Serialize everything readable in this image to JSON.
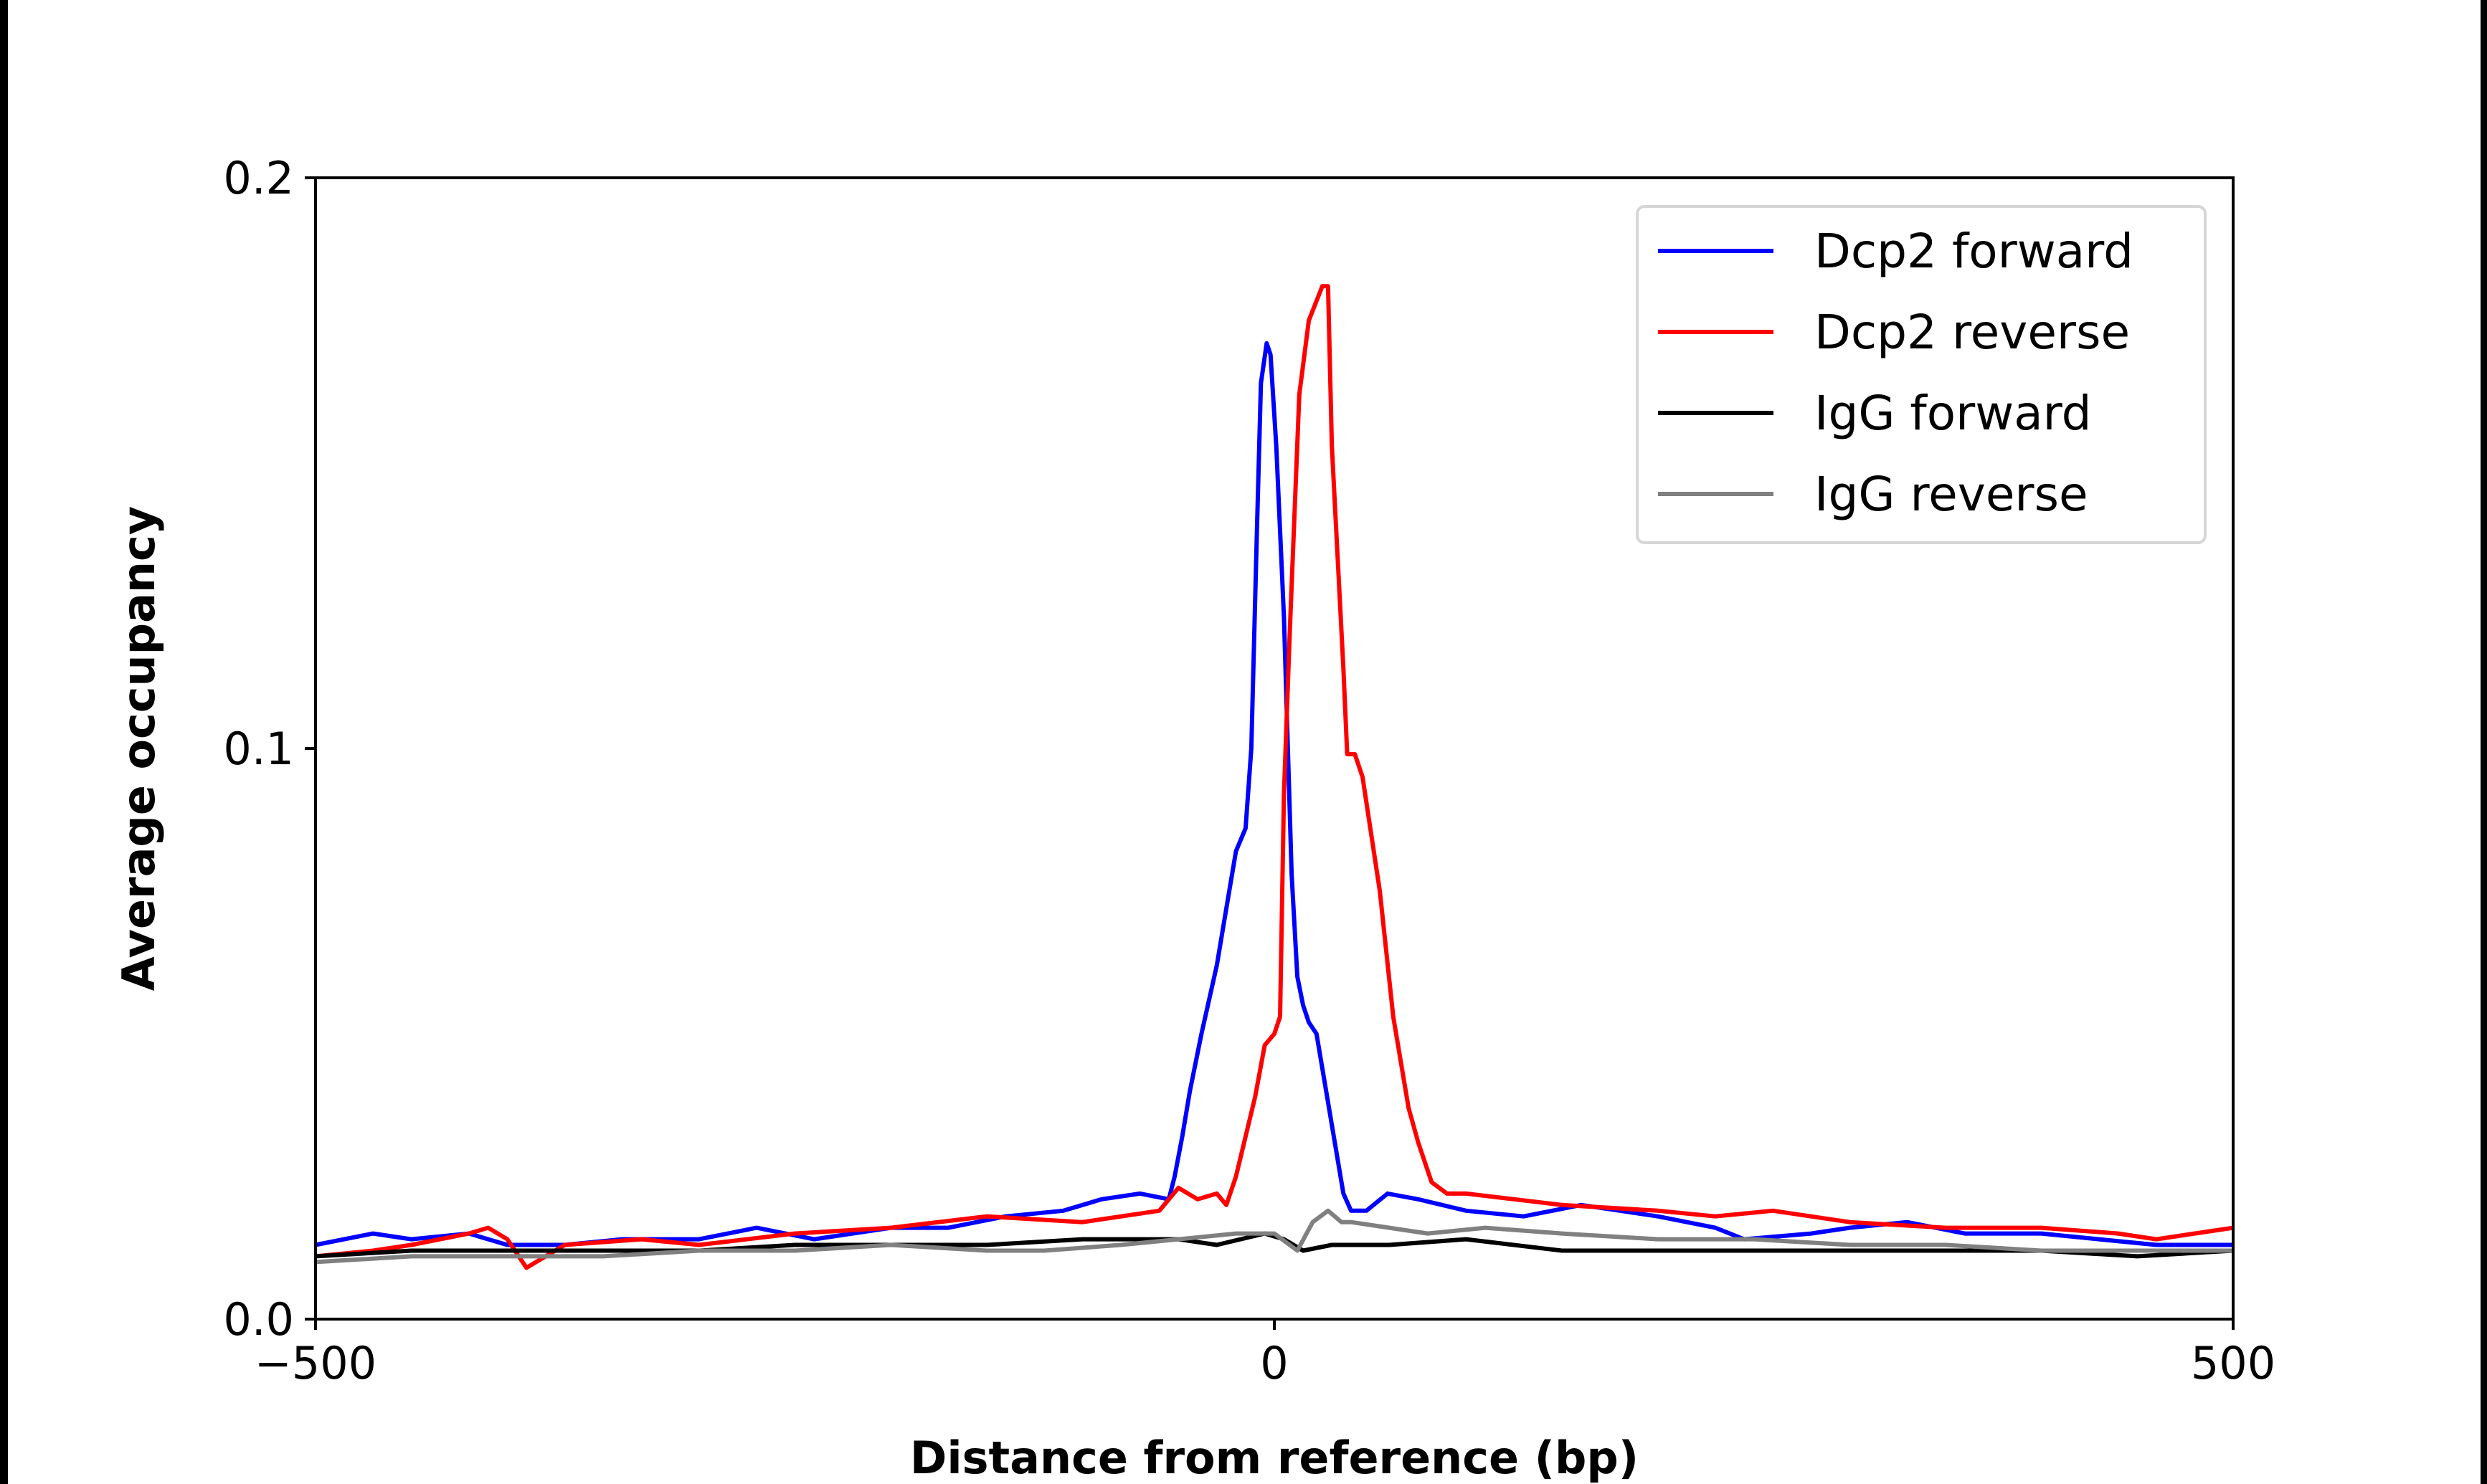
{
  "chart_data": {
    "type": "line",
    "title": "",
    "xlabel": "Distance from reference (bp)",
    "ylabel": "Average occupancy",
    "xlim": [
      -500,
      500
    ],
    "ylim": [
      0,
      0.2
    ],
    "xticks": [
      -500,
      0,
      500
    ],
    "xtick_labels": [
      "−500",
      "0",
      "500"
    ],
    "yticks": [
      0,
      0.1,
      0.2
    ],
    "ytick_labels": [
      "0.0",
      "0.1",
      "0.2"
    ],
    "grid": false,
    "legend_position": "top-right",
    "series": [
      {
        "name": "Dcp2 forward",
        "color": "#0000ff",
        "x": [
          -500,
          -470,
          -450,
          -420,
          -400,
          -370,
          -340,
          -300,
          -270,
          -240,
          -200,
          -170,
          -140,
          -110,
          -90,
          -70,
          -55,
          -52,
          -48,
          -44,
          -38,
          -30,
          -25,
          -20,
          -15,
          -12,
          -9,
          -7,
          -4,
          -2,
          1,
          5,
          9,
          12,
          15,
          18,
          22,
          27,
          32,
          36,
          40,
          48,
          59,
          75,
          100,
          130,
          160,
          200,
          230,
          245,
          280,
          300,
          330,
          360,
          400,
          430,
          460,
          500
        ],
        "y": [
          0.013,
          0.015,
          0.014,
          0.015,
          0.013,
          0.013,
          0.014,
          0.014,
          0.016,
          0.014,
          0.016,
          0.016,
          0.018,
          0.019,
          0.021,
          0.022,
          0.021,
          0.025,
          0.032,
          0.04,
          0.05,
          0.062,
          0.072,
          0.082,
          0.086,
          0.1,
          0.139,
          0.164,
          0.171,
          0.169,
          0.153,
          0.123,
          0.078,
          0.06,
          0.055,
          0.052,
          0.05,
          0.04,
          0.03,
          0.022,
          0.019,
          0.019,
          0.022,
          0.021,
          0.019,
          0.018,
          0.02,
          0.018,
          0.016,
          0.014,
          0.015,
          0.016,
          0.017,
          0.015,
          0.015,
          0.014,
          0.013,
          0.013
        ]
      },
      {
        "name": "Dcp2 reverse",
        "color": "#ff0000",
        "x": [
          -500,
          -470,
          -450,
          -420,
          -410,
          -400,
          -390,
          -370,
          -330,
          -300,
          -250,
          -200,
          -150,
          -100,
          -60,
          -50,
          -40,
          -30,
          -25,
          -20,
          -15,
          -10,
          -5,
          0,
          3,
          5,
          8,
          13,
          18,
          25,
          28,
          30,
          36,
          38,
          42,
          46,
          55,
          62,
          70,
          75,
          82,
          90,
          100,
          150,
          200,
          230,
          260,
          300,
          350,
          400,
          440,
          460,
          500
        ],
        "y": [
          0.011,
          0.012,
          0.013,
          0.015,
          0.016,
          0.014,
          0.009,
          0.013,
          0.014,
          0.013,
          0.015,
          0.016,
          0.018,
          0.017,
          0.019,
          0.023,
          0.021,
          0.022,
          0.02,
          0.025,
          0.032,
          0.039,
          0.048,
          0.05,
          0.053,
          0.092,
          0.12,
          0.162,
          0.175,
          0.181,
          0.181,
          0.153,
          0.114,
          0.099,
          0.099,
          0.095,
          0.075,
          0.053,
          0.037,
          0.031,
          0.024,
          0.022,
          0.022,
          0.02,
          0.019,
          0.018,
          0.019,
          0.017,
          0.016,
          0.016,
          0.015,
          0.014,
          0.016
        ]
      },
      {
        "name": "IgG forward",
        "color": "#000000",
        "x": [
          -500,
          -450,
          -400,
          -350,
          -300,
          -250,
          -200,
          -150,
          -100,
          -50,
          -30,
          -5,
          5,
          15,
          30,
          60,
          100,
          150,
          200,
          250,
          300,
          350,
          400,
          450,
          500
        ],
        "y": [
          0.011,
          0.012,
          0.012,
          0.012,
          0.012,
          0.013,
          0.013,
          0.013,
          0.014,
          0.014,
          0.013,
          0.015,
          0.014,
          0.012,
          0.013,
          0.013,
          0.014,
          0.012,
          0.012,
          0.012,
          0.012,
          0.012,
          0.012,
          0.011,
          0.012
        ]
      },
      {
        "name": "IgG reverse",
        "color": "#808080",
        "x": [
          -500,
          -450,
          -400,
          -350,
          -300,
          -250,
          -200,
          -150,
          -120,
          -80,
          -50,
          -20,
          0,
          8,
          12,
          20,
          28,
          35,
          40,
          60,
          80,
          110,
          150,
          200,
          250,
          300,
          350,
          400,
          450,
          500
        ],
        "y": [
          0.01,
          0.011,
          0.011,
          0.011,
          0.012,
          0.012,
          0.013,
          0.012,
          0.012,
          0.013,
          0.014,
          0.015,
          0.015,
          0.013,
          0.012,
          0.017,
          0.019,
          0.017,
          0.017,
          0.016,
          0.015,
          0.016,
          0.015,
          0.014,
          0.014,
          0.013,
          0.013,
          0.012,
          0.012,
          0.012
        ]
      }
    ]
  }
}
